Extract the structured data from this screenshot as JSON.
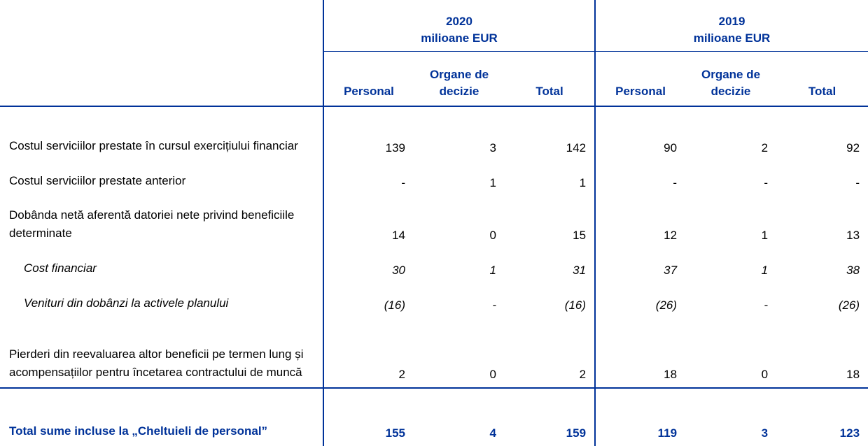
{
  "header": {
    "years": [
      {
        "label": "2020",
        "unit": "milioane EUR"
      },
      {
        "label": "2019",
        "unit": "milioane EUR"
      }
    ],
    "columns": [
      "Personal",
      "Organe de decizie",
      "Total",
      "Personal",
      "Organe de decizie",
      "Total"
    ]
  },
  "table": {
    "rows": [
      {
        "label": "Costul serviciilor prestate în cursul exercițiului financiar",
        "values": [
          "139",
          "3",
          "142",
          "90",
          "2",
          "92"
        ],
        "style": "normal"
      },
      {
        "label": "Costul serviciilor prestate anterior",
        "values": [
          "-",
          "1",
          "1",
          "-",
          "-",
          "-"
        ],
        "style": "normal"
      },
      {
        "label": "Dobânda netă aferentă datoriei nete privind beneficiile determinate",
        "values": [
          "14",
          "0",
          "15",
          "12",
          "1",
          "13"
        ],
        "style": "normal"
      },
      {
        "label": "Cost financiar",
        "values": [
          "30",
          "1",
          "31",
          "37",
          "1",
          "38"
        ],
        "style": "italic"
      },
      {
        "label": "Venituri din dobânzi la activele planului",
        "values": [
          "(16)",
          "-",
          "(16)",
          "(26)",
          "-",
          "(26)"
        ],
        "style": "italic"
      },
      {
        "label": "Pierderi din reevaluarea altor beneficii pe termen lung și acompensațiilor pentru încetarea contractului de muncă",
        "values": [
          "2",
          "0",
          "2",
          "18",
          "0",
          "18"
        ],
        "style": "normal"
      },
      {
        "label": "Total sume incluse la „Cheltuieli de personal”",
        "values": [
          "155",
          "4",
          "159",
          "119",
          "3",
          "123"
        ],
        "style": "total"
      }
    ]
  }
}
